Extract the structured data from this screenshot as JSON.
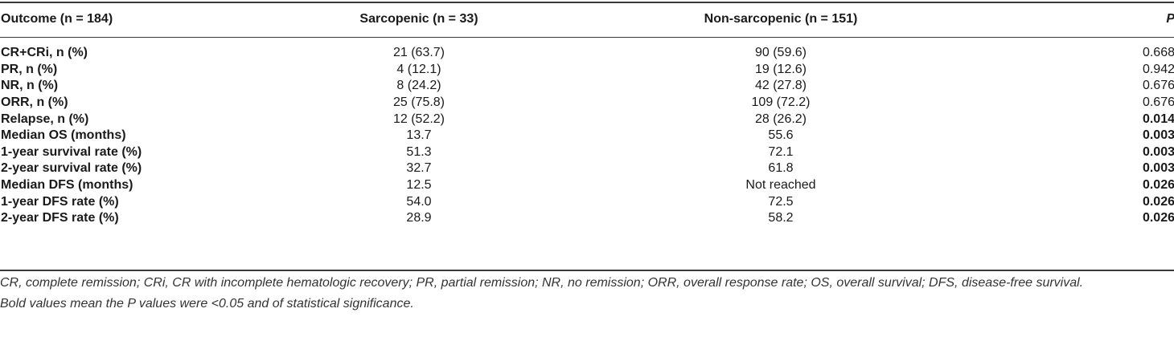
{
  "table": {
    "headers": [
      "Outcome (n = 184)",
      "Sarcopenic (n = 33)",
      "Non-sarcopenic (n = 151)",
      "P"
    ],
    "rows": [
      {
        "outcome": "CR+CRi, n (%)",
        "sarcopenic": "21 (63.7)",
        "non_sarcopenic": "90 (59.6)",
        "p": "0.668",
        "significant": false
      },
      {
        "outcome": "PR, n (%)",
        "sarcopenic": "4 (12.1)",
        "non_sarcopenic": "19 (12.6)",
        "p": "0.942",
        "significant": false
      },
      {
        "outcome": "NR, n (%)",
        "sarcopenic": "8 (24.2)",
        "non_sarcopenic": "42 (27.8)",
        "p": "0.676",
        "significant": false
      },
      {
        "outcome": "ORR, n (%)",
        "sarcopenic": "25 (75.8)",
        "non_sarcopenic": "109 (72.2)",
        "p": "0.676",
        "significant": false
      },
      {
        "outcome": "Relapse, n (%)",
        "sarcopenic": "12 (52.2)",
        "non_sarcopenic": "28 (26.2)",
        "p": "0.014",
        "significant": true
      },
      {
        "outcome": "Median OS (months)",
        "sarcopenic": "13.7",
        "non_sarcopenic": "55.6",
        "p": "0.003",
        "significant": true
      },
      {
        "outcome": "1-year survival rate (%)",
        "sarcopenic": "51.3",
        "non_sarcopenic": "72.1",
        "p": "0.003",
        "significant": true
      },
      {
        "outcome": "2-year survival rate (%)",
        "sarcopenic": "32.7",
        "non_sarcopenic": "61.8",
        "p": "0.003",
        "significant": true
      },
      {
        "outcome": "Median DFS (months)",
        "sarcopenic": "12.5",
        "non_sarcopenic": "Not reached",
        "p": "0.026",
        "significant": true
      },
      {
        "outcome": "1-year DFS rate (%)",
        "sarcopenic": "54.0",
        "non_sarcopenic": "72.5",
        "p": "0.026",
        "significant": true
      },
      {
        "outcome": "2-year DFS rate (%)",
        "sarcopenic": "28.9",
        "non_sarcopenic": "58.2",
        "p": "0.026",
        "significant": true
      }
    ]
  },
  "footnotes": {
    "abbreviations": "CR, complete remission; CRi, CR with incomplete hematologic recovery; PR, partial remission; NR, no remission; ORR, overall response rate; OS, overall survival; DFS, disease-free survival.",
    "significance": "Bold values mean the P values were <0.05 and of statistical significance."
  }
}
